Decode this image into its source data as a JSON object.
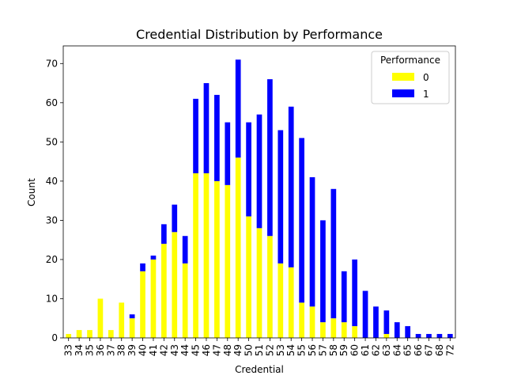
{
  "chart_data": {
    "type": "bar",
    "stacked": true,
    "title": "Credential Distribution by Performance",
    "xlabel": "Credential",
    "ylabel": "Count",
    "ylim": [
      0,
      74.5
    ],
    "yticks": [
      0,
      10,
      20,
      30,
      40,
      50,
      60,
      70
    ],
    "categories": [
      "33",
      "34",
      "35",
      "36",
      "37",
      "38",
      "39",
      "40",
      "41",
      "42",
      "43",
      "44",
      "45",
      "46",
      "47",
      "48",
      "49",
      "50",
      "51",
      "52",
      "53",
      "54",
      "55",
      "56",
      "57",
      "58",
      "59",
      "60",
      "61",
      "62",
      "63",
      "64",
      "65",
      "66",
      "67",
      "68",
      "72"
    ],
    "series": [
      {
        "name": "0",
        "color": "#ffff00",
        "values": [
          1,
          2,
          2,
          10,
          2,
          9,
          5,
          17,
          20,
          24,
          27,
          19,
          42,
          42,
          40,
          39,
          46,
          31,
          28,
          26,
          19,
          18,
          9,
          8,
          4,
          5,
          4,
          3,
          0,
          0,
          1,
          0,
          0,
          0,
          0,
          0,
          0
        ]
      },
      {
        "name": "1",
        "color": "#0000ff",
        "values": [
          0,
          0,
          0,
          0,
          0,
          0,
          1,
          2,
          1,
          5,
          7,
          7,
          19,
          23,
          22,
          16,
          25,
          24,
          29,
          40,
          34,
          41,
          42,
          33,
          26,
          33,
          13,
          17,
          12,
          8,
          6,
          4,
          3,
          1,
          1,
          1,
          1
        ]
      }
    ],
    "legend": {
      "title": "Performance",
      "position": "top-right"
    },
    "grid": false
  }
}
